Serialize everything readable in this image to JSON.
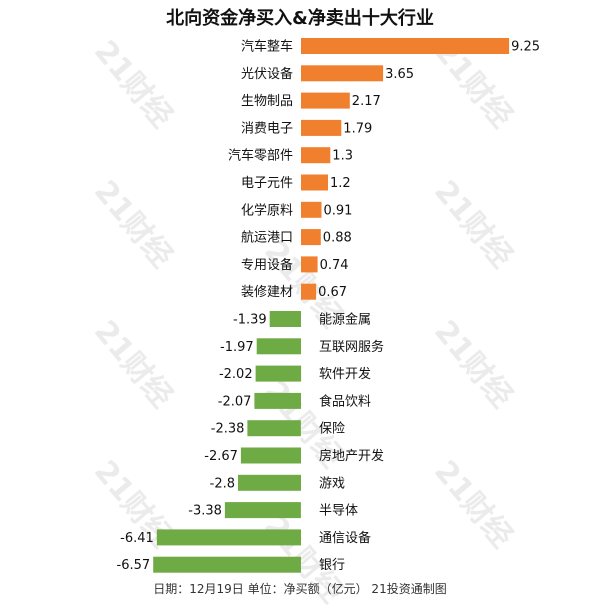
{
  "title": "北向资金净买入&净卖出十大行业",
  "footer": "日期：12月19日 单位：净买额（亿元） 21投资通制图",
  "watermark": "21财经",
  "colors": {
    "positive": "#F07F2E",
    "negative": "#6FAB45"
  },
  "chart_data": {
    "type": "bar",
    "orientation": "horizontal",
    "title": "北向资金净买入&净卖出十大行业",
    "xlabel": "",
    "ylabel": "",
    "xlim": [
      -6.57,
      9.25
    ],
    "grid": false,
    "categories": [
      "汽车整车",
      "光伏设备",
      "生物制品",
      "消费电子",
      "汽车零部件",
      "电子元件",
      "化学原料",
      "航运港口",
      "专用设备",
      "装修建材",
      "能源金属",
      "互联网服务",
      "软件开发",
      "食品饮料",
      "保险",
      "房地产开发",
      "游戏",
      "半导体",
      "通信设备",
      "银行"
    ],
    "values": [
      9.25,
      3.65,
      2.17,
      1.79,
      1.3,
      1.2,
      0.91,
      0.88,
      0.74,
      0.67,
      -1.39,
      -1.97,
      -2.02,
      -2.07,
      -2.38,
      -2.67,
      -2.8,
      -3.38,
      -6.41,
      -6.57
    ],
    "value_labels": [
      "9.25",
      "3.65",
      "2.17",
      "1.79",
      "1.3",
      "1.2",
      "0.91",
      "0.88",
      "0.74",
      "0.67",
      "-1.39",
      "-1.97",
      "-2.02",
      "-2.07",
      "-2.38",
      "-2.67",
      "-2.8",
      "-3.38",
      "-6.41",
      "-6.57"
    ]
  }
}
